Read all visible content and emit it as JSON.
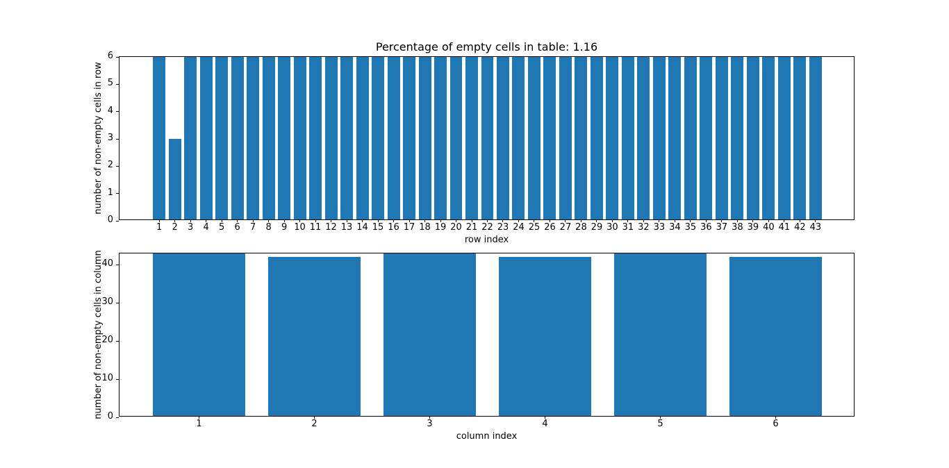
{
  "figure": {
    "background_color": "#ffffff",
    "spine_color": "#000000",
    "text_color": "#000000"
  },
  "chart_data": [
    {
      "type": "bar",
      "title": "Percentage of empty cells in table: 1.16",
      "xlabel": "row index",
      "ylabel": "number of non-empty cells in row",
      "categories": [
        1,
        2,
        3,
        4,
        5,
        6,
        7,
        8,
        9,
        10,
        11,
        12,
        13,
        14,
        15,
        16,
        17,
        18,
        19,
        20,
        21,
        22,
        23,
        24,
        25,
        26,
        27,
        28,
        29,
        30,
        31,
        32,
        33,
        34,
        35,
        36,
        37,
        38,
        39,
        40,
        41,
        42,
        43
      ],
      "values": [
        6,
        3,
        6,
        6,
        6,
        6,
        6,
        6,
        6,
        6,
        6,
        6,
        6,
        6,
        6,
        6,
        6,
        6,
        6,
        6,
        6,
        6,
        6,
        6,
        6,
        6,
        6,
        6,
        6,
        6,
        6,
        6,
        6,
        6,
        6,
        6,
        6,
        6,
        6,
        6,
        6,
        6,
        6
      ],
      "bar_width": 0.8,
      "bar_color": "#1f77b4",
      "xlim": [
        -1.54,
        45.54
      ],
      "ylim": [
        0,
        6
      ],
      "yticks": [
        0,
        1,
        2,
        3,
        4,
        5,
        6
      ],
      "grid": false,
      "legend": null
    },
    {
      "type": "bar",
      "title": "",
      "xlabel": "column index",
      "ylabel": "number of non-empty cells in column",
      "categories": [
        1,
        2,
        3,
        4,
        5,
        6
      ],
      "values": [
        43,
        42,
        43,
        42,
        43,
        42
      ],
      "bar_width": 0.8,
      "bar_color": "#1f77b4",
      "xlim": [
        0.31,
        6.69
      ],
      "ylim": [
        0,
        43
      ],
      "yticks": [
        0,
        10,
        20,
        30,
        40
      ],
      "grid": false,
      "legend": null
    }
  ]
}
